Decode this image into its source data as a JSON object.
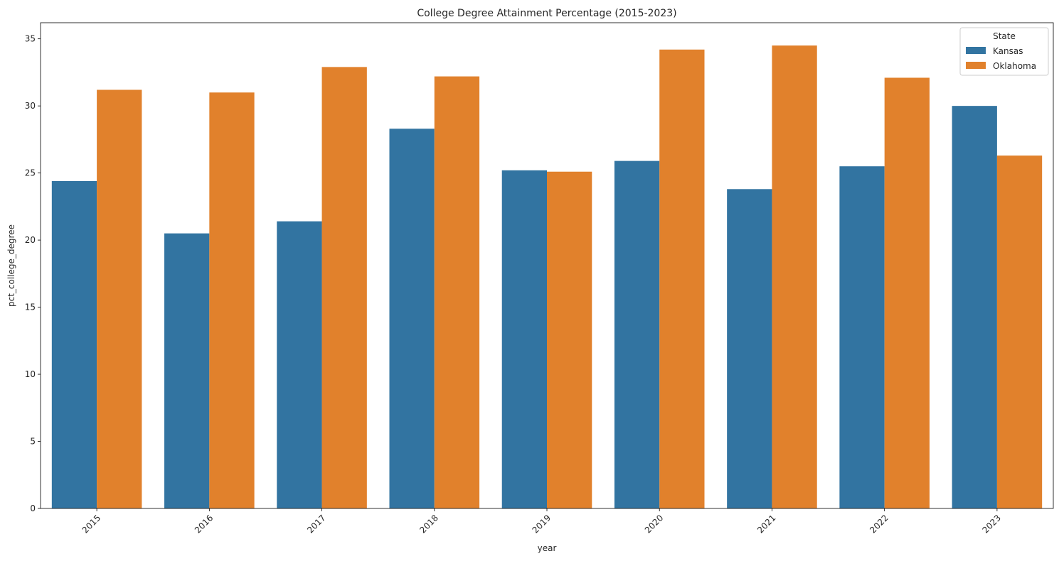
{
  "chart_data": {
    "type": "bar",
    "title": "College Degree Attainment Percentage (2015-2023)",
    "xlabel": "year",
    "ylabel": "pct_college_degree",
    "categories": [
      "2015",
      "2016",
      "2017",
      "2018",
      "2019",
      "2020",
      "2021",
      "2022",
      "2023"
    ],
    "series": [
      {
        "name": "Kansas",
        "color": "#3274a1",
        "values": [
          24.4,
          20.5,
          21.4,
          28.3,
          25.2,
          25.9,
          23.8,
          25.5,
          30.0
        ]
      },
      {
        "name": "Oklahoma",
        "color": "#e1812c",
        "values": [
          31.2,
          31.0,
          32.9,
          32.2,
          25.1,
          34.2,
          34.5,
          32.1,
          26.3
        ]
      }
    ],
    "ylim": [
      0,
      36.2
    ],
    "yticks": [
      "0",
      "5",
      "10",
      "15",
      "20",
      "25",
      "30",
      "35"
    ],
    "grid": false,
    "legend": {
      "title": "State",
      "placement": "top-right"
    },
    "xtick_rotation": 45
  }
}
